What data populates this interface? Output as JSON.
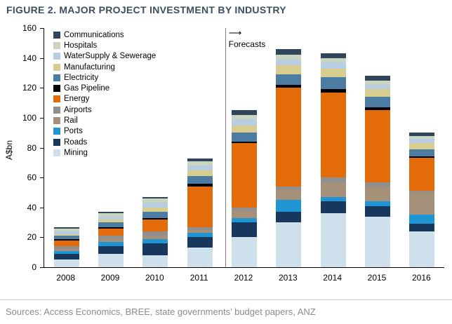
{
  "title": "FIGURE 2. MAJOR PROJECT INVESTMENT BY INDUSTRY",
  "footer": "Sources: Access Economics, BREE, state governments’ budget papers, ANZ",
  "chart_data": {
    "type": "bar",
    "stacked": true,
    "title": "FIGURE 2. MAJOR PROJECT INVESTMENT BY INDUSTRY",
    "ylabel": "A$bn",
    "ylim": [
      0,
      160
    ],
    "ytick_step": 20,
    "grid": false,
    "legend_position": "inside-top-left",
    "categories": [
      "2008",
      "2009",
      "2010",
      "2011",
      "2012",
      "2013",
      "2014",
      "2015",
      "2016"
    ],
    "forecast_label": "Forecasts",
    "forecast_arrow": "⟶",
    "forecast_start_category": "2012",
    "series": [
      {
        "name": "Mining",
        "color": "#cfe0ed",
        "values": [
          5,
          9,
          8,
          13,
          20,
          30,
          36,
          34,
          24
        ]
      },
      {
        "name": "Roads",
        "color": "#17375d",
        "values": [
          4,
          5,
          8,
          7,
          10,
          7,
          8,
          7,
          5
        ]
      },
      {
        "name": "Ports",
        "color": "#2095d3",
        "values": [
          2,
          3,
          3,
          3,
          3,
          8,
          3,
          3,
          6
        ]
      },
      {
        "name": "Rail",
        "color": "#a5907a",
        "values": [
          1,
          2,
          2,
          2,
          5,
          7,
          10,
          10,
          15
        ]
      },
      {
        "name": "Airports",
        "color": "#8f8f8f",
        "values": [
          2,
          2,
          3,
          2,
          2,
          2,
          3,
          3,
          1
        ]
      },
      {
        "name": "Energy",
        "color": "#e36b0a",
        "values": [
          4,
          5,
          8,
          27,
          43,
          66,
          57,
          48,
          22
        ]
      },
      {
        "name": "Gas Pipeline",
        "color": "#000000",
        "values": [
          1,
          1,
          1,
          2,
          1,
          2,
          2,
          2,
          1
        ]
      },
      {
        "name": "Electricity",
        "color": "#4d7ca3",
        "values": [
          2,
          3,
          4,
          5,
          6,
          7,
          8,
          7,
          5
        ]
      },
      {
        "name": "Manufacturing",
        "color": "#d7cd8e",
        "values": [
          1,
          2,
          3,
          4,
          5,
          6,
          6,
          5,
          4
        ]
      },
      {
        "name": "WaterSupply & Sewerage",
        "color": "#b8cce2",
        "values": [
          2,
          2,
          3,
          3,
          4,
          4,
          4,
          3,
          3
        ]
      },
      {
        "name": "Hospitals",
        "color": "#c8d5c1",
        "values": [
          2,
          2,
          3,
          3,
          3,
          3,
          3,
          3,
          2
        ]
      },
      {
        "name": "Communications",
        "color": "#30445a",
        "values": [
          1,
          1,
          1,
          2,
          3,
          4,
          3,
          3,
          2
        ]
      }
    ],
    "legend_order": "reverse-of-stack",
    "colors": {
      "title_text": "#3e4d5f",
      "source_text": "#8b8b8b",
      "axis": "#000000",
      "forecast_divider": "#808080"
    }
  }
}
